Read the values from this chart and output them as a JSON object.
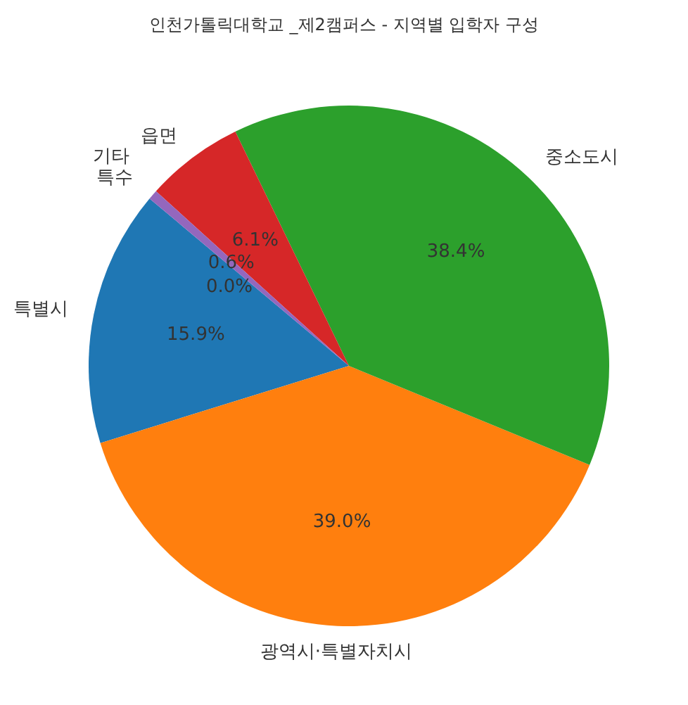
{
  "chart_data": {
    "type": "pie",
    "title": "인천가톨릭대학교 _제2캠퍼스 - 지역별 입학자 구성",
    "categories": [
      "특별시",
      "광역시·특별자치시",
      "중소도시",
      "읍면",
      "특수",
      "기타"
    ],
    "values": [
      15.9,
      39.0,
      38.4,
      6.1,
      0.6,
      0.0
    ],
    "colors": [
      "#1f77b4",
      "#ff7f0e",
      "#2ca02c",
      "#d62728",
      "#9467bd",
      null
    ],
    "value_labels": [
      "15.9%",
      "39.0%",
      "38.4%",
      "6.1%",
      "0.6%",
      "0.0%"
    ]
  }
}
